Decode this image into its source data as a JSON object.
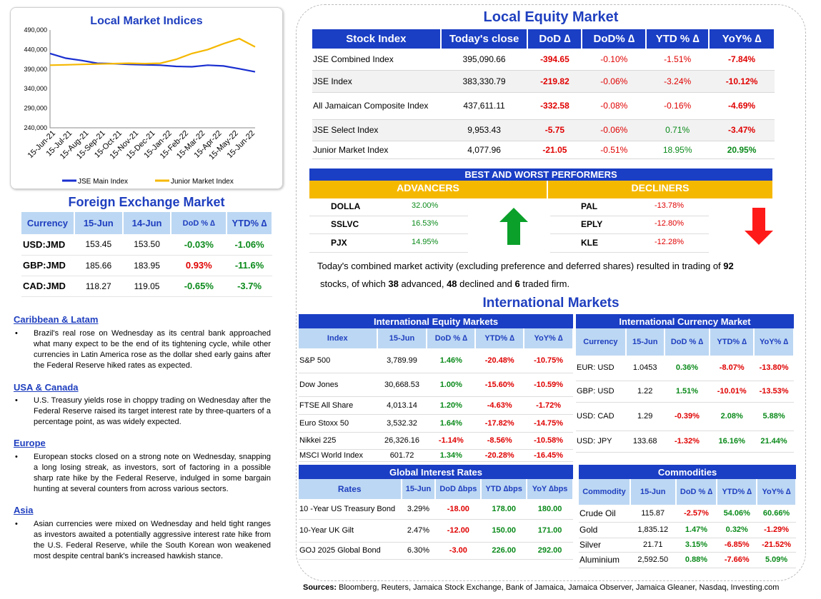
{
  "index_chart": {
    "title": "Local Market Indices",
    "chart_data": {
      "type": "line",
      "title": "Local Market Indices",
      "ylim": [
        240000,
        490000
      ],
      "y_ticks": [
        "490,000",
        "440,000",
        "390,000",
        "340,000",
        "290,000",
        "240,000"
      ],
      "x_ticks": [
        "15-Jun-21",
        "15-Jul-21",
        "15-Aug-21",
        "15-Sep-21",
        "15-Oct-21",
        "15-Nov-21",
        "15-Dec-21",
        "15-Jan-22",
        "15-Feb-22",
        "15-Mar-22",
        "15-Apr-22",
        "15-May-22",
        "15-Jun-22"
      ],
      "legend": "bottom",
      "series": [
        {
          "name": "JSE Main Index",
          "color": "#1a2fd0",
          "values": [
            430000,
            418000,
            412000,
            405000,
            404000,
            402000,
            401000,
            400000,
            397000,
            396000,
            400000,
            398000,
            391000,
            383000
          ]
        },
        {
          "name": "Junior Market Index",
          "color": "#f5b800",
          "values": [
            400000,
            401000,
            402000,
            403000,
            404000,
            405000,
            404000,
            405000,
            415000,
            430000,
            440000,
            455000,
            468000,
            447000
          ]
        }
      ]
    }
  },
  "fx": {
    "title": "Foreign Exchange Market",
    "headers": [
      "Currency",
      "15-Jun",
      "14-Jun",
      "DoD % ∆",
      "YTD% ∆"
    ],
    "rows": [
      {
        "label": "USD:JMD",
        "d1": "153.45",
        "d2": "153.50",
        "dod": "-0.03%",
        "ytd": "-1.06%",
        "dod_c": "pos",
        "ytd_c": "pos"
      },
      {
        "label": "GBP:JMD",
        "d1": "185.66",
        "d2": "183.95",
        "dod": "0.93%",
        "ytd": "-11.6%",
        "dod_c": "neg",
        "ytd_c": "pos"
      },
      {
        "label": "CAD:JMD",
        "d1": "118.27",
        "d2": "119.05",
        "dod": "-0.65%",
        "ytd": "-3.7%",
        "dod_c": "pos",
        "ytd_c": "pos"
      }
    ]
  },
  "news": [
    {
      "heading": "Caribbean & Latam",
      "text": "Brazil's real rose on Wednesday as its central bank approached what many expect to be the end of its tightening cycle, while other currencies in Latin America rose as the dollar shed early gains after the Federal Reserve hiked rates as expected."
    },
    {
      "heading": "USA & Canada",
      "text": "U.S. Treasury yields rose in choppy trading on Wednesday after the Federal Reserve raised its target interest rate by three-quarters of a percentage point, as was widely expected."
    },
    {
      "heading": "Europe",
      "text": "European stocks closed on a strong note on Wednesday, snapping a long losing streak, as investors, sort of factoring in a possible sharp rate hike by the Federal Reserve, indulged in some bargain hunting at several counters from across various sectors."
    },
    {
      "heading": "Asia",
      "text": "Asian currencies were mixed on Wednesday and held tight ranges as investors awaited a potentially aggressive interest rate hike from the U.S. Federal Reserve, while the South Korean won weakened most despite central bank's increased hawkish stance."
    }
  ],
  "equity": {
    "title": "Local Equity Market",
    "headers": [
      "Stock Index",
      "Today's close",
      "DoD  ∆",
      "DoD% ∆",
      "YTD % ∆",
      "YoY% ∆"
    ],
    "rows": [
      {
        "label": "JSE Combined Index",
        "close": "395,090.66",
        "dod": "-394.65",
        "dodp": "-0.10%",
        "ytd": "-1.51%",
        "yoy": "-7.84%",
        "c": [
          "neg",
          "neg",
          "neg",
          "neg"
        ],
        "h": 30
      },
      {
        "label": "JSE Index",
        "close": "383,330.79",
        "dod": "-219.82",
        "dodp": "-0.06%",
        "ytd": "-3.24%",
        "yoy": "-10.12%",
        "c": [
          "neg",
          "neg",
          "neg",
          "neg"
        ],
        "h": 31
      },
      {
        "label": "All Jamaican Composite Index",
        "close": "437,611.11",
        "dod": "-332.58",
        "dodp": "-0.08%",
        "ytd": "-0.16%",
        "yoy": "-4.69%",
        "c": [
          "neg",
          "neg",
          "neg",
          "neg"
        ],
        "h": 38
      },
      {
        "label": "JSE Select Index",
        "close": "9,953.43",
        "dod": "-5.75",
        "dodp": "-0.06%",
        "ytd": "0.71%",
        "yoy": "-3.47%",
        "c": [
          "neg",
          "neg",
          "pos",
          "neg"
        ],
        "h": 30
      },
      {
        "label": "Junior Market Index",
        "close": "4,077.96",
        "dod": "-21.05",
        "dodp": "-0.51%",
        "ytd": "18.95%",
        "yoy": "20.95%",
        "c": [
          "neg",
          "neg",
          "pos",
          "pos"
        ],
        "h": 25
      }
    ]
  },
  "performers": {
    "title": "BEST AND WORST PERFORMERS",
    "advancers_label": "ADVANCERS",
    "decliners_label": "DECLINERS",
    "advancers": [
      {
        "ticker": "DOLLA",
        "pct": "32.00%"
      },
      {
        "ticker": "SSLVC",
        "pct": "16.53%"
      },
      {
        "ticker": "PJX",
        "pct": "14.95%"
      }
    ],
    "decliners": [
      {
        "ticker": "PAL",
        "pct": "-13.78%"
      },
      {
        "ticker": "EPLY",
        "pct": "-12.80%"
      },
      {
        "ticker": "KLE",
        "pct": "-12.28%"
      }
    ]
  },
  "summary": {
    "p1": "Today's combined market activity (excluding preference and deferred shares) resulted in trading of ",
    "n_total": "92",
    "p2": "stocks, of which ",
    "n_adv": "38",
    "p3": " advanced, ",
    "n_dec": "48",
    "p4": " declined and ",
    "n_firm": "6",
    "p5": " traded firm."
  },
  "intl_title": "International Markets",
  "intl_equity": {
    "title": "International Equity Markets",
    "headers": [
      "Index",
      "15-Jun",
      "DoD % ∆",
      "YTD% ∆",
      "YoY% ∆"
    ],
    "rows": [
      {
        "label": "S&P 500",
        "v1": "3,789.99",
        "dod": "1.46%",
        "ytd": "-20.48%",
        "yoy": "-10.75%",
        "c": [
          "pos",
          "neg",
          "neg"
        ],
        "h": 34
      },
      {
        "label": "Dow Jones",
        "v1": "30,668.53",
        "dod": "1.00%",
        "ytd": "-15.60%",
        "yoy": "-10.59%",
        "c": [
          "pos",
          "neg",
          "neg"
        ],
        "h": 33
      },
      {
        "label": "FTSE All Share",
        "v1": "4,013.14",
        "dod": "1.20%",
        "ytd": "-4.63%",
        "yoy": "-1.72%",
        "c": [
          "pos",
          "neg",
          "neg"
        ],
        "h": 25
      },
      {
        "label": "Euro Stoxx 50",
        "v1": "3,532.32",
        "dod": "1.64%",
        "ytd": "-17.82%",
        "yoy": "-14.75%",
        "c": [
          "pos",
          "neg",
          "neg"
        ],
        "h": 25
      },
      {
        "label": "Nikkei 225",
        "v1": "26,326.16",
        "dod": "-1.14%",
        "ytd": "-8.56%",
        "yoy": "-10.58%",
        "c": [
          "neg",
          "neg",
          "neg"
        ],
        "h": 24
      },
      {
        "label": "MSCI World Index",
        "v1": "601.72",
        "dod": "1.34%",
        "ytd": "-20.28%",
        "yoy": "-16.45%",
        "c": [
          "pos",
          "neg",
          "neg"
        ],
        "h": 17
      }
    ]
  },
  "intl_currency": {
    "title": "International Currency Market",
    "headers": [
      "Currency",
      "15-Jun",
      "DoD % ∆",
      "YTD% ∆",
      "YoY% ∆"
    ],
    "rows": [
      {
        "label": "EUR: USD",
        "v1": "1.0453",
        "dod": "0.36%",
        "ytd": "-8.07%",
        "yoy": "-13.80%",
        "c": [
          "pos",
          "neg",
          "neg"
        ],
        "h": 35
      },
      {
        "label": "GBP: USD",
        "v1": "1.22",
        "dod": "1.51%",
        "ytd": "-10.01%",
        "yoy": "-13.53%",
        "c": [
          "pos",
          "neg",
          "neg"
        ],
        "h": 30
      },
      {
        "label": "USD: CAD",
        "v1": "1.29",
        "dod": "-0.39%",
        "ytd": "2.08%",
        "yoy": "5.88%",
        "c": [
          "neg",
          "pos",
          "pos"
        ],
        "h": 40
      },
      {
        "label": "USD: JPY",
        "v1": "133.68",
        "dod": "-1.32%",
        "ytd": "16.16%",
        "yoy": "21.44%",
        "c": [
          "neg",
          "pos",
          "pos"
        ],
        "h": 30
      }
    ]
  },
  "rates": {
    "title": "Global Interest Rates",
    "headers": [
      "Rates",
      "15-Jun",
      "DoD ∆bps",
      "YTD ∆bps",
      "YoY ∆bps"
    ],
    "rows": [
      {
        "label": "10 -Year US Treasury Bond",
        "v1": "3.29%",
        "dod": "-18.00",
        "ytd": "178.00",
        "yoy": "180.00",
        "c": [
          "neg",
          "pos",
          "pos"
        ],
        "h": 28
      },
      {
        "label": "10-Year UK Gilt",
        "v1": "2.47%",
        "dod": "-12.00",
        "ytd": "150.00",
        "yoy": "171.00",
        "c": [
          "neg",
          "pos",
          "pos"
        ],
        "h": 32
      },
      {
        "label": "GOJ 2025 Global Bond",
        "v1": "6.30%",
        "dod": "-3.00",
        "ytd": "226.00",
        "yoy": "292.00",
        "c": [
          "neg",
          "pos",
          "pos"
        ],
        "h": 24
      }
    ]
  },
  "commodities": {
    "title": "Commodities",
    "headers": [
      "Commodity",
      "15-Jun",
      "DoD % ∆",
      "YTD% ∆",
      "YoY% ∆"
    ],
    "rows": [
      {
        "label": "Crude Oil",
        "v1": "115.87",
        "dod": "-2.57%",
        "ytd": "54.06%",
        "yoy": "60.66%",
        "c": [
          "neg",
          "pos",
          "pos"
        ],
        "h": 24
      },
      {
        "label": "Gold",
        "v1": "1,835.12",
        "dod": "1.47%",
        "ytd": "0.32%",
        "yoy": "-1.29%",
        "c": [
          "pos",
          "pos",
          "neg"
        ],
        "h": 22
      },
      {
        "label": "Silver",
        "v1": "21.71",
        "dod": "3.15%",
        "ytd": "-6.85%",
        "yoy": "-21.52%",
        "c": [
          "pos",
          "neg",
          "neg"
        ],
        "h": 20
      },
      {
        "label": "Aluminium",
        "v1": "2,592.50",
        "dod": "0.88%",
        "ytd": "-7.66%",
        "yoy": "5.09%",
        "c": [
          "pos",
          "neg",
          "pos"
        ],
        "h": 22
      }
    ]
  },
  "sources": {
    "label": "Sources:",
    "text": " Bloomberg, Reuters, Jamaica Stock Exchange, Bank of Jamaica, Jamaica Observer, Jamaica Gleaner, Nasdaq, Investing.com"
  }
}
